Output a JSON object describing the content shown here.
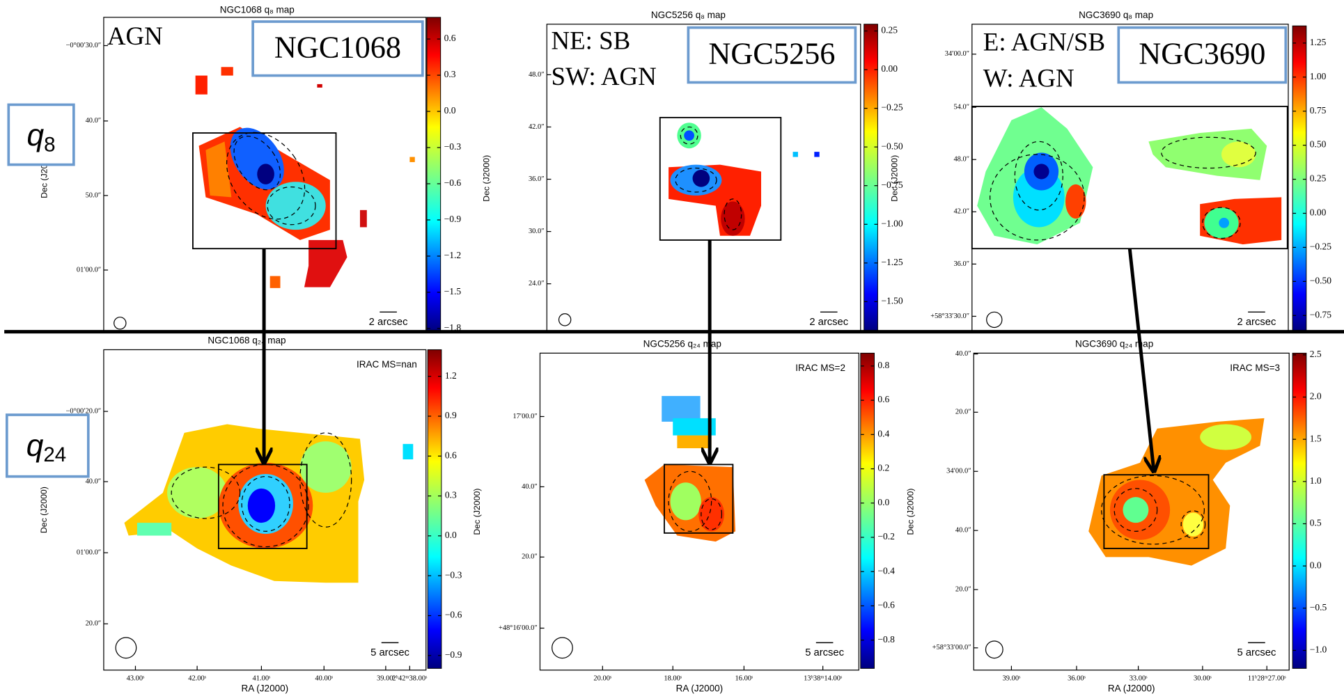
{
  "panels": [
    {
      "title": "NGC1068 q₈ map",
      "galaxy_label": "NGC1068",
      "annotation": [
        "AGN"
      ],
      "dec_label": "Dec (J2000)",
      "dec_ticks": [
        "−0°00′30.0″",
        "40.0″",
        "50.0″",
        "01′00.0″"
      ],
      "scale_bar": "2 arcsec",
      "colorbar": {
        "lim": [
          -1.82,
          0.78
        ],
        "ticks": [
          {
            "value": 0.6,
            "label": "0.6"
          },
          {
            "value": 0.3,
            "label": "0.3"
          },
          {
            "value": 0,
            "label": "0.0"
          },
          {
            "value": -0.3,
            "label": "−0.3"
          },
          {
            "value": -0.6,
            "label": "−0.6"
          },
          {
            "value": -0.9,
            "label": "−0.9"
          },
          {
            "value": -1.2,
            "label": "−1.2"
          },
          {
            "value": -1.5,
            "label": "−1.5"
          },
          {
            "value": -1.8,
            "label": "−1.8"
          }
        ]
      }
    },
    {
      "title": "NGC5256 q₈ map",
      "galaxy_label": "NGC5256",
      "annotation": [
        "NE: SB",
        "SW: AGN"
      ],
      "dec_label": "Dec (J2000)",
      "dec_ticks": [
        "48.0″",
        "42.0″",
        "36.0″",
        "30.0″",
        "24.0″"
      ],
      "scale_bar": "2 arcsec",
      "colorbar": {
        "lim": [
          -1.689,
          0.294
        ],
        "ticks": [
          {
            "value": 0.25,
            "label": "0.25"
          },
          {
            "value": 0,
            "label": "0.00"
          },
          {
            "value": -0.25,
            "label": "−0.25"
          },
          {
            "value": -0.5,
            "label": "−0.50"
          },
          {
            "value": -0.75,
            "label": "−0.75"
          },
          {
            "value": -1,
            "label": "−1.00"
          },
          {
            "value": -1.25,
            "label": "−1.25"
          },
          {
            "value": -1.5,
            "label": "−1.50"
          }
        ]
      }
    },
    {
      "title": "NGC3690 q₈ map",
      "galaxy_label": "NGC3690",
      "annotation": [
        "E: AGN/SB",
        "W: AGN"
      ],
      "dec_label": "Dec (J2000)",
      "dec_ticks": [
        "34′00.0″",
        "54.0″",
        "48.0″",
        "42.0″",
        "36.0″",
        "+58°33′30.0″"
      ],
      "scale_bar": "2 arcsec",
      "colorbar": {
        "lim": [
          -0.863,
          1.376
        ],
        "ticks": [
          {
            "value": 1.25,
            "label": "1.25"
          },
          {
            "value": 1,
            "label": "1.00"
          },
          {
            "value": 0.75,
            "label": "0.75"
          },
          {
            "value": 0.5,
            "label": "0.50"
          },
          {
            "value": 0.25,
            "label": "0.25"
          },
          {
            "value": 0,
            "label": "0.00"
          },
          {
            "value": -0.25,
            "label": "−0.25"
          },
          {
            "value": -0.5,
            "label": "−0.50"
          },
          {
            "value": -0.75,
            "label": "−0.75"
          }
        ]
      }
    },
    {
      "title": "NGC1068 q₂₄ map",
      "irac": "IRAC MS=nan",
      "dec_label": "Dec (J2000)",
      "dec_ticks": [
        "−0°00′20.0″",
        "40.0″",
        "01′00.0″",
        "20.0″"
      ],
      "ra_label": "RA (J2000)",
      "ra_ticks": [
        "43.00ˢ",
        "42.00ˢ",
        "41.00ˢ",
        "40.00ˢ",
        "39.00ˢ",
        "2ʰ42ᵐ38.00ˢ"
      ],
      "scale_bar": "5 arcsec",
      "colorbar": {
        "lim": [
          -0.997,
          1.4
        ],
        "ticks": [
          {
            "value": 1.2,
            "label": "1.2"
          },
          {
            "value": 0.9,
            "label": "0.9"
          },
          {
            "value": 0.6,
            "label": "0.6"
          },
          {
            "value": 0.3,
            "label": "0.3"
          },
          {
            "value": 0,
            "label": "0.0"
          },
          {
            "value": -0.3,
            "label": "−0.3"
          },
          {
            "value": -0.6,
            "label": "−0.6"
          },
          {
            "value": -0.9,
            "label": "−0.9"
          }
        ]
      }
    },
    {
      "title": "NGC5256 q₂₄ map",
      "irac": "IRAC MS=2",
      "dec_label": "Dec (J2000)",
      "dec_ticks": [
        "17′00.0″",
        "40.0″",
        "20.0″",
        "+48°16′00.0″"
      ],
      "ra_label": "RA (J2000)",
      "ra_ticks": [
        "20.00ˢ",
        "18.00ˢ",
        "16.00ˢ",
        "13ʰ38ᵐ14.00ˢ"
      ],
      "scale_bar": "5 arcsec",
      "colorbar": {
        "lim": [
          -0.965,
          0.875
        ],
        "ticks": [
          {
            "value": 0.8,
            "label": "0.8"
          },
          {
            "value": 0.6,
            "label": "0.6"
          },
          {
            "value": 0.4,
            "label": "0.4"
          },
          {
            "value": 0.2,
            "label": "0.2"
          },
          {
            "value": 0,
            "label": "0.0"
          },
          {
            "value": -0.2,
            "label": "−0.2"
          },
          {
            "value": -0.4,
            "label": "−0.4"
          },
          {
            "value": -0.6,
            "label": "−0.6"
          },
          {
            "value": -0.8,
            "label": "−0.8"
          }
        ]
      }
    },
    {
      "title": "NGC3690 q₂₄ map",
      "irac": "IRAC MS=3",
      "dec_label": "Dec (J2000)",
      "dec_ticks": [
        "40.0″",
        "20.0″",
        "34′00.0″",
        "40.0″",
        "20.0″",
        "+58°33′00.0″"
      ],
      "ra_label": "RA (J2000)",
      "ra_ticks": [
        "39.00ˢ",
        "36.00ˢ",
        "33.00ˢ",
        "30.00ˢ",
        "11ʰ28ᵐ27.00ˢ"
      ],
      "scale_bar": "5 arcsec",
      "colorbar": {
        "lim": [
          -1.213,
          2.52
        ],
        "ticks": [
          {
            "value": 2.5,
            "label": "2.5"
          },
          {
            "value": 2,
            "label": "2.0"
          },
          {
            "value": 1.5,
            "label": "1.5"
          },
          {
            "value": 1,
            "label": "1.0"
          },
          {
            "value": 0.5,
            "label": "0.5"
          },
          {
            "value": 0,
            "label": "0.0"
          },
          {
            "value": -0.5,
            "label": "−0.5"
          },
          {
            "value": -1,
            "label": "−1.0"
          }
        ]
      }
    }
  ],
  "row_labels": [
    {
      "symbol": "q",
      "subscript": "8"
    },
    {
      "symbol": "q",
      "subscript": "24"
    }
  ]
}
